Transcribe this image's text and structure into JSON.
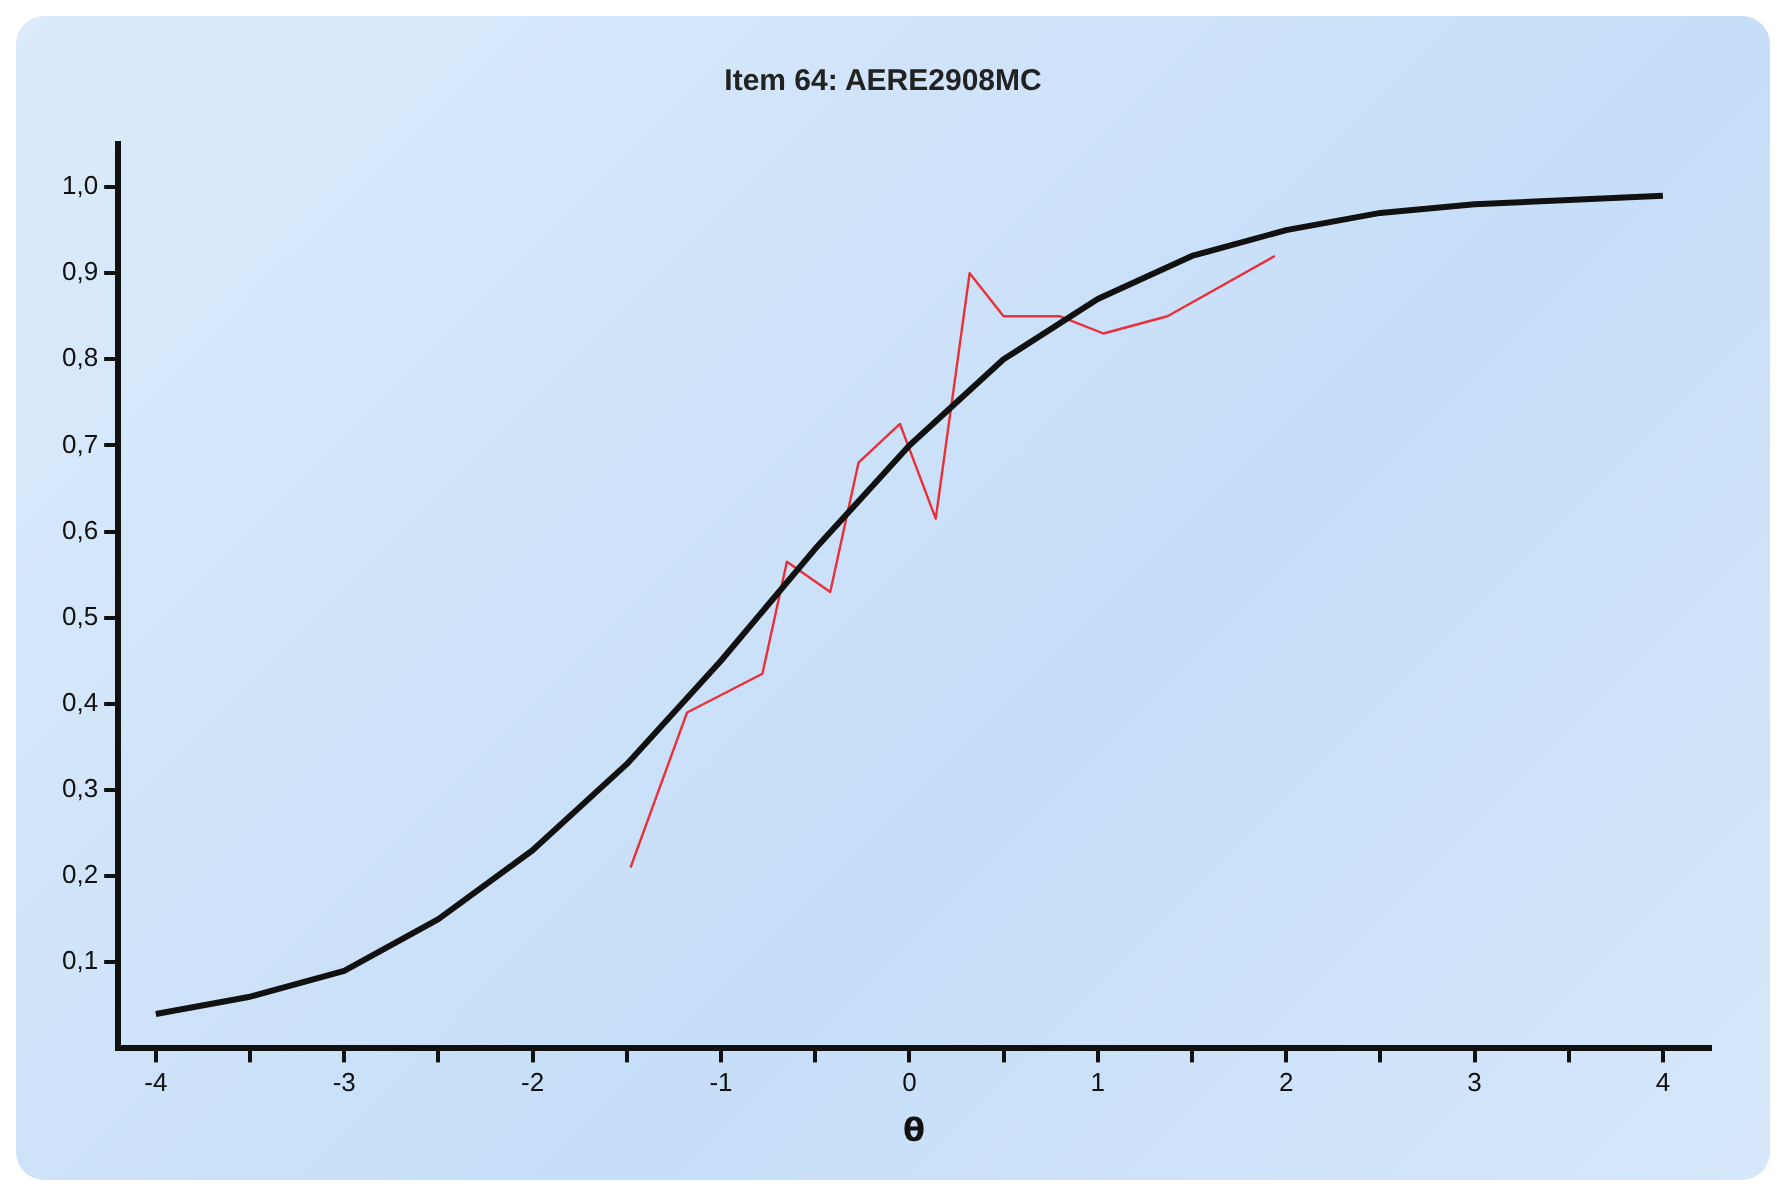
{
  "chart_data": {
    "type": "line",
    "title": "Item 64: AERE2908MC",
    "xlabel": "θ",
    "xlim": [
      -4.2,
      4.25
    ],
    "ylim": [
      0,
      1.05
    ],
    "xticks": [
      -4,
      {
        "value": -3.5,
        "label": null
      },
      -3,
      {
        "value": -2.5,
        "label": null
      },
      -2,
      {
        "value": -1.5,
        "label": null
      },
      -1,
      {
        "value": -0.5,
        "label": null
      },
      0,
      {
        "value": 0.5,
        "label": null
      },
      1,
      {
        "value": 1.5,
        "label": null
      },
      2,
      {
        "value": 2.5,
        "label": null
      },
      3,
      {
        "value": 3.5,
        "label": null
      },
      4
    ],
    "yticks": [
      {
        "value": 0.1,
        "label": "0,1"
      },
      {
        "value": 0.2,
        "label": "0,2"
      },
      {
        "value": 0.3,
        "label": "0,3"
      },
      {
        "value": 0.4,
        "label": "0,4"
      },
      {
        "value": 0.5,
        "label": "0,5"
      },
      {
        "value": 0.6,
        "label": "0,6"
      },
      {
        "value": 0.7,
        "label": "0,7"
      },
      {
        "value": 0.8,
        "label": "0,8"
      },
      {
        "value": 0.9,
        "label": "0,9"
      },
      {
        "value": 1.0,
        "label": "1,0"
      }
    ],
    "grid": false,
    "legend": false,
    "marker": "none",
    "line_style": "solid",
    "series": [
      {
        "color": "#111111",
        "x": [
          -4,
          -3.5,
          -3,
          -2.5,
          -2,
          -1.5,
          -1,
          -0.5,
          0,
          0.5,
          1,
          1.5,
          2,
          2.5,
          3,
          3.5,
          4
        ],
        "values": [
          0.04,
          0.06,
          0.09,
          0.15,
          0.23,
          0.33,
          0.45,
          0.58,
          0.7,
          0.8,
          0.87,
          0.92,
          0.95,
          0.97,
          0.98,
          0.985,
          0.99
        ]
      },
      {
        "color": "#e8303a",
        "x": [
          -1.48,
          -1.18,
          -0.78,
          -0.65,
          -0.42,
          -0.27,
          -0.05,
          0.14,
          0.32,
          0.5,
          0.8,
          1.03,
          1.37,
          1.94
        ],
        "values": [
          0.21,
          0.39,
          0.435,
          0.565,
          0.53,
          0.68,
          0.725,
          0.615,
          0.9,
          0.85,
          0.85,
          0.83,
          0.85,
          0.92
        ]
      }
    ]
  }
}
